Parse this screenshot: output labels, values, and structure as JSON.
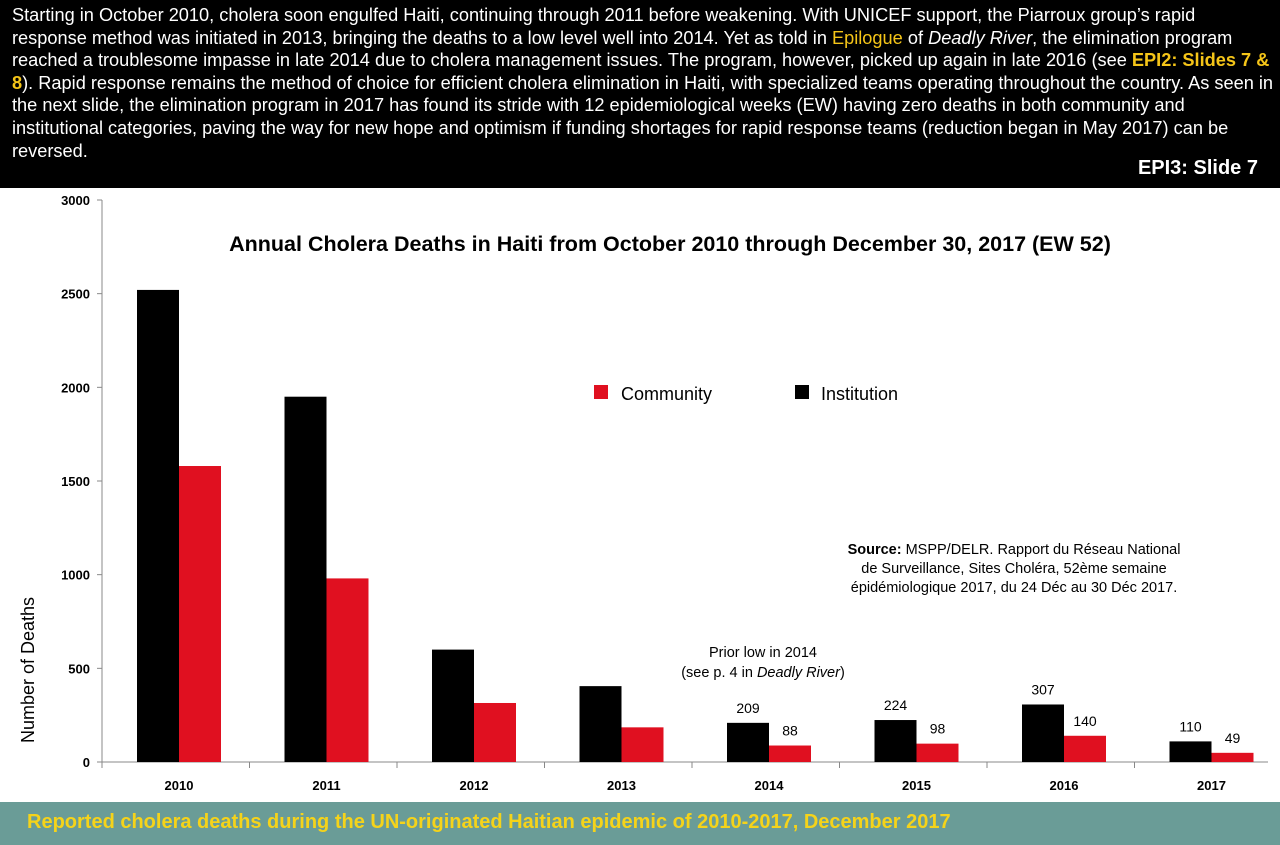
{
  "header": {
    "seg1": "Starting in October 2010, cholera soon engulfed Haiti, continuing through 2011 before weakening. With UNICEF support, the Piarroux group’s rapid response method was initiated in 2013, bringing the deaths to a low level well into 2014. Yet as told in ",
    "epilogue_link": "Epilogue",
    "seg2": " of ",
    "book_title": "Deadly River",
    "seg3": ", the elimination program reached a troublesome impasse in late 2014 due to cholera management issues. The program, however, picked up again in late 2016 (see ",
    "epi2_link": "EPI2: Slides 7 & 8",
    "seg4": "). Rapid response remains the method of choice for efficient cholera elimination in Haiti, with specialized teams operating throughout the country. As seen in the next slide, the elimination program in 2017 has found its stride with 12 epidemiological weeks (EW) having zero deaths in both community and institutional categories, paving the way for new hope and optimism if funding shortages for rapid response teams (reduction began in May 2017) can be reversed.",
    "slide_label": "EPI3: Slide 7"
  },
  "footer": {
    "caption": "Reported cholera deaths during the UN-originated Haitian epidemic of 2010-2017,  December 2017"
  },
  "colors": {
    "community": "#e01020",
    "institution": "#000000",
    "highlight": "#f5c518",
    "footer_bg": "#6a9c97",
    "footer_text": "#f5d31a"
  },
  "chart_data": {
    "type": "bar",
    "title": "Annual Cholera Deaths in Haiti from October 2010 through December 30, 2017 (EW 52)",
    "xlabel": "",
    "ylabel": "Number of Deaths",
    "ylim": [
      0,
      3000
    ],
    "yticks": [
      0,
      500,
      1000,
      1500,
      2000,
      2500,
      3000
    ],
    "categories": [
      "2010",
      "2011",
      "2012",
      "2013",
      "2014",
      "2015",
      "2016",
      "2017"
    ],
    "series": [
      {
        "name": "Institution",
        "values": [
          2520,
          1950,
          600,
          405,
          209,
          224,
          307,
          110
        ],
        "labels": [
          "",
          "",
          "",
          "",
          "209",
          "224",
          "307",
          "110"
        ]
      },
      {
        "name": "Community",
        "values": [
          1580,
          980,
          315,
          185,
          88,
          98,
          140,
          49
        ],
        "labels": [
          "",
          "",
          "",
          "",
          "88",
          "98",
          "140",
          "49"
        ]
      }
    ],
    "legend": {
      "placement": "top-center",
      "items": [
        "Community",
        "Institution"
      ]
    },
    "annotations": {
      "prior_low_line1": "Prior low in 2014",
      "prior_low_line2_pre": "(see p. 4 in ",
      "prior_low_line2_italic": "Deadly River",
      "prior_low_line2_post": ")",
      "source_label": "Source:",
      "source_line1": " MSPP/DELR. Rapport du Réseau National",
      "source_line2": "de Surveillance, Sites Choléra, 52ème semaine",
      "source_line3": "épidémiologique 2017, du 24 Déc au 30 Déc 2017."
    }
  }
}
